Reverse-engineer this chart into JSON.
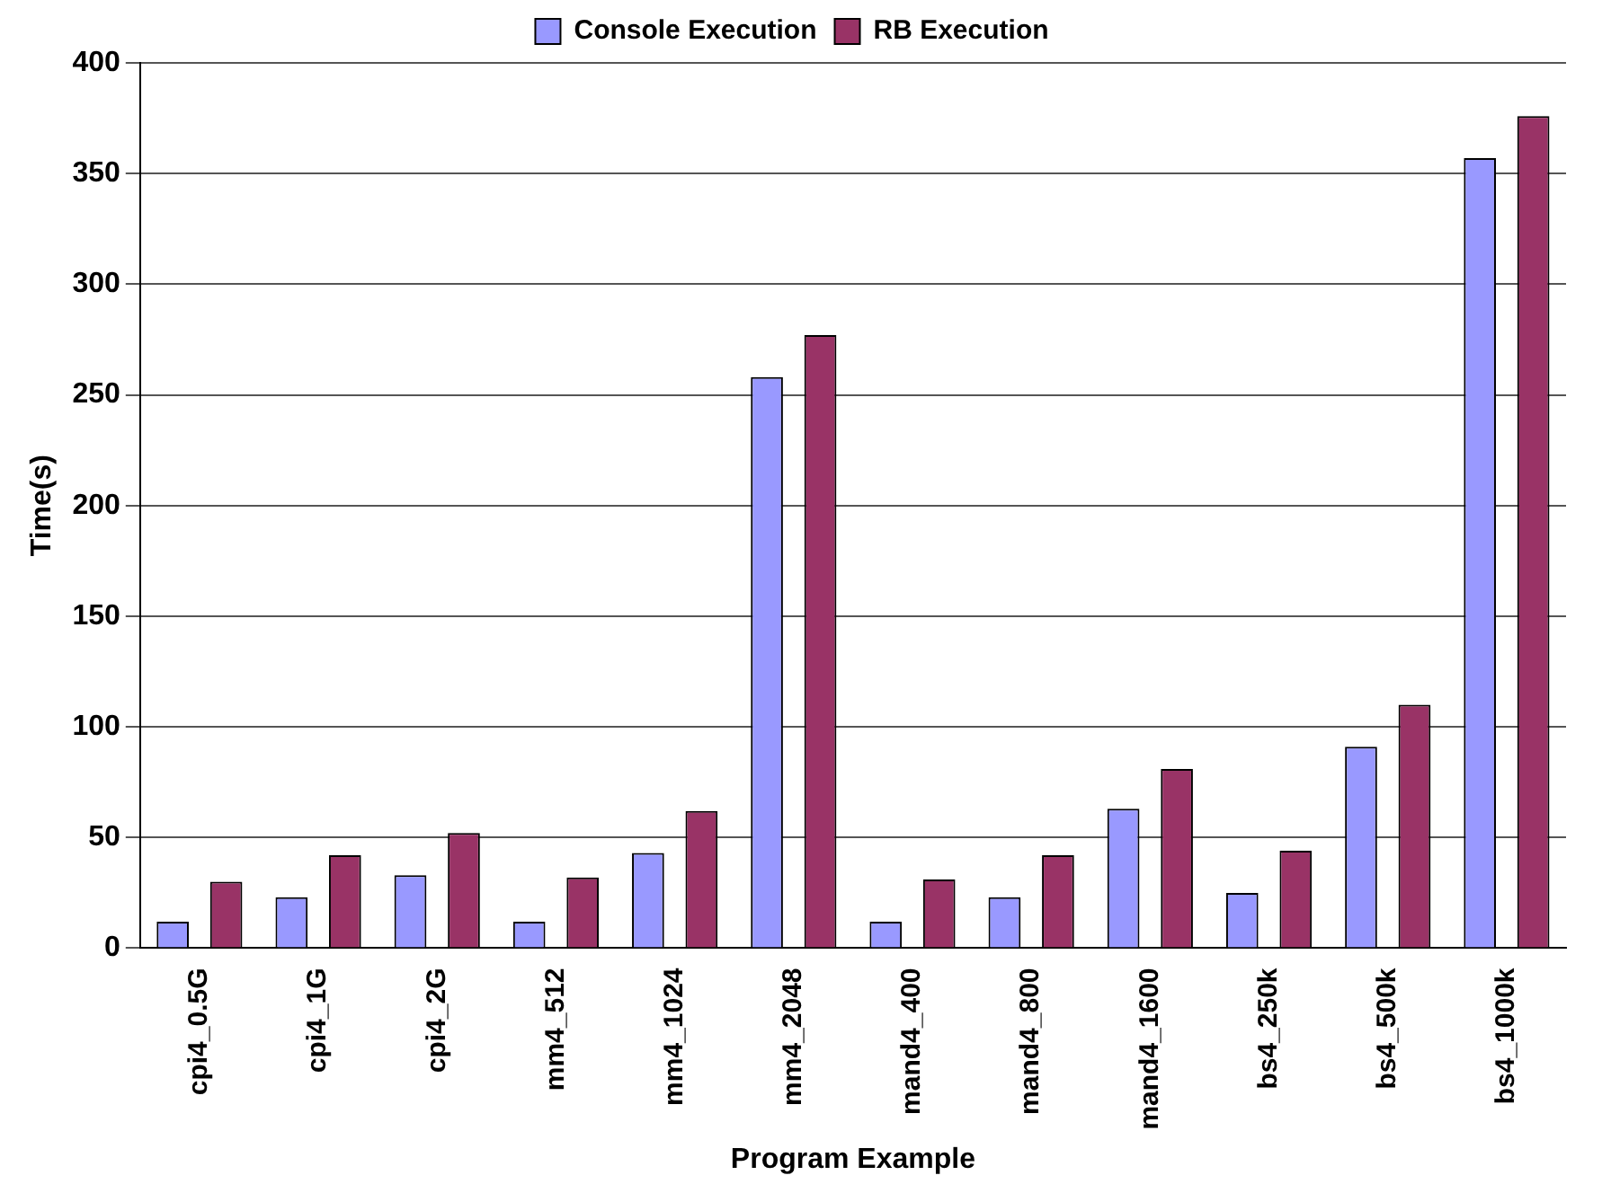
{
  "chart_data": {
    "type": "bar",
    "xlabel": "Program Example",
    "ylabel": "Time(s)",
    "categories": [
      "cpi4_0.5G",
      "cpi4_1G",
      "cpi4_2G",
      "mm4_512",
      "mm4_1024",
      "mm4_2048",
      "mand4_400",
      "mand4_800",
      "mand4_1600",
      "bs4_250k",
      "bs4_500k",
      "bs4_1000k"
    ],
    "series": [
      {
        "name": "Console Execution",
        "color": "#9999ff",
        "values": [
          12,
          23,
          33,
          12,
          43,
          258,
          12,
          23,
          63,
          25,
          91,
          357
        ]
      },
      {
        "name": "RB Execution",
        "color": "#993366",
        "values": [
          30,
          42,
          52,
          32,
          62,
          277,
          31,
          42,
          81,
          44,
          110,
          376
        ]
      }
    ],
    "ylim": [
      0,
      400
    ],
    "yticks": [
      0,
      50,
      100,
      150,
      200,
      250,
      300,
      350,
      400
    ],
    "grid": "y",
    "legend": "top"
  }
}
